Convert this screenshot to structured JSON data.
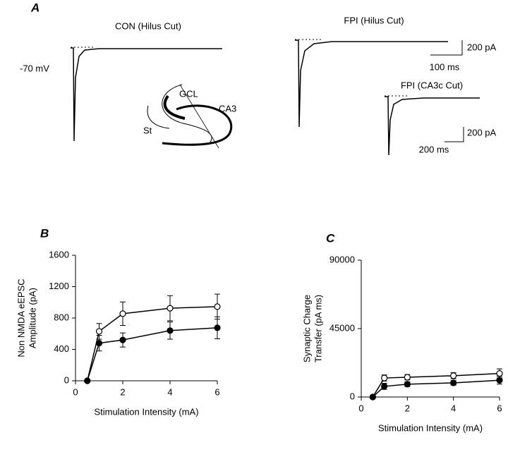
{
  "panel_a": {
    "label": "A",
    "con_title": "CON (Hilus Cut)",
    "fpi_title": "FPI (Hilus Cut)",
    "holding": "-70 mV",
    "scale_current_1": "200 pA",
    "scale_time_1": "100 ms",
    "fpi_ca3c_title": "FPI (CA3c Cut)",
    "scale_current_2": "200 pA",
    "scale_time_2": "200 ms",
    "inset_gcl": "GCL",
    "inset_ca3": "CA3",
    "inset_st": "St"
  },
  "chart_data": [
    {
      "type": "scatter",
      "panel_label": "B",
      "xlabel": "Stimulation Intensity (mA)",
      "ylabel": [
        "Non NMDA eEPSC",
        "Amplitude (pA)"
      ],
      "xlim": [
        0,
        6
      ],
      "xticks": [
        0,
        2,
        4,
        6
      ],
      "ylim": [
        0,
        1600
      ],
      "yticks": [
        0,
        400,
        800,
        1200,
        1600
      ],
      "x": [
        0.5,
        1,
        2,
        4,
        6
      ],
      "series": [
        {
          "color": "#000000",
          "fill": "#ffffff",
          "values": [
            0,
            630,
            855,
            925,
            945
          ],
          "errors": [
            0,
            100,
            150,
            160,
            160
          ]
        },
        {
          "color": "#000000",
          "fill": "#000000",
          "values": [
            0,
            480,
            520,
            640,
            675
          ],
          "errors": [
            0,
            100,
            90,
            110,
            140
          ]
        }
      ]
    },
    {
      "type": "scatter",
      "panel_label": "C",
      "xlabel": "Stimulation Intensity (mA)",
      "ylabel": [
        "Synaptic Charge",
        "Transfer (pA ms)"
      ],
      "xlim": [
        0,
        6
      ],
      "xticks": [
        0,
        2,
        4,
        6
      ],
      "ylim": [
        0,
        90000
      ],
      "yticks": [
        0,
        45000,
        90000
      ],
      "x": [
        0.5,
        1,
        2,
        4,
        6
      ],
      "series": [
        {
          "color": "#000000",
          "fill": "#ffffff",
          "values": [
            0,
            12500,
            13000,
            14000,
            15500
          ],
          "errors": [
            0,
            2000,
            1800,
            2000,
            3000
          ]
        },
        {
          "color": "#000000",
          "fill": "#000000",
          "values": [
            0,
            7000,
            8400,
            9300,
            11000
          ],
          "errors": [
            0,
            2000,
            1500,
            1500,
            2500
          ]
        }
      ]
    }
  ]
}
